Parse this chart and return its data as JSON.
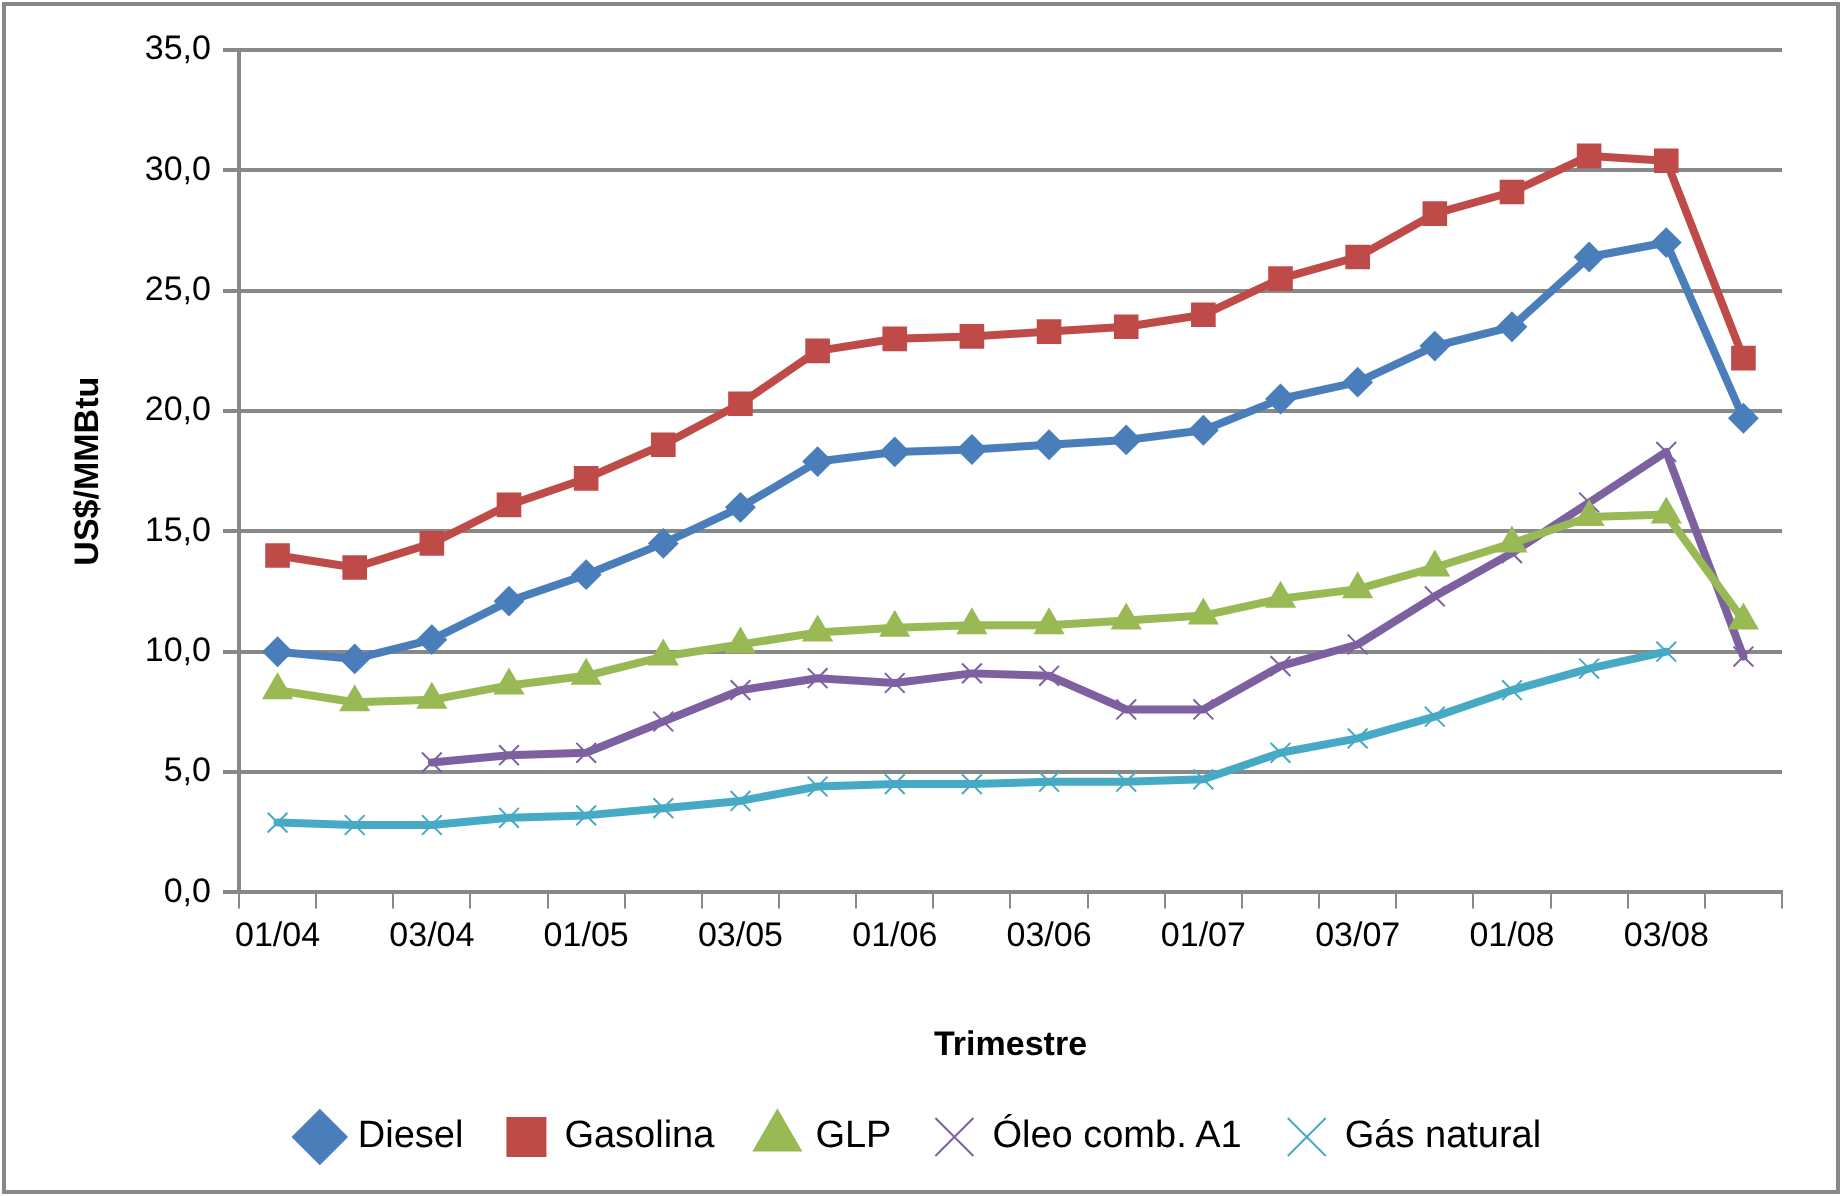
{
  "chart_data": {
    "type": "line",
    "xlabel": "Trimestre",
    "ylabel": "US$/MMBtu",
    "categories": [
      "01/04",
      null,
      "03/04",
      null,
      "01/05",
      null,
      "03/05",
      null,
      "01/06",
      null,
      "03/06",
      null,
      "01/07",
      null,
      "03/07",
      null,
      "01/08",
      null,
      "03/08",
      null
    ],
    "series": [
      {
        "name": "Diesel",
        "color": "#4a7ebb",
        "marker": "diamond",
        "values": [
          10,
          9.7,
          10.5,
          12.1,
          13.2,
          14.5,
          16,
          17.9,
          18.3,
          18.4,
          18.6,
          18.8,
          19.2,
          20.5,
          21.2,
          22.7,
          23.5,
          26.4,
          27,
          19.7
        ]
      },
      {
        "name": "Gasolina",
        "color": "#be4b48",
        "marker": "square",
        "values": [
          14,
          13.5,
          14.5,
          16.1,
          17.2,
          18.6,
          20.3,
          22.5,
          23,
          23.1,
          23.3,
          23.5,
          24,
          25.5,
          26.4,
          28.2,
          29.1,
          30.6,
          30.4,
          22.2
        ]
      },
      {
        "name": "GLP",
        "color": "#98b954",
        "marker": "triangle",
        "values": [
          8.4,
          7.9,
          8,
          8.6,
          9,
          9.8,
          10.3,
          10.8,
          11,
          11.1,
          11.1,
          11.3,
          11.5,
          12.2,
          12.6,
          13.5,
          14.5,
          15.6,
          15.7,
          11.3
        ]
      },
      {
        "name": "Óleo comb. A1",
        "color": "#7d60a0",
        "marker": "cross",
        "values": [
          null,
          null,
          5.4,
          5.7,
          5.8,
          7.1,
          8.4,
          8.9,
          8.7,
          9.1,
          9,
          7.6,
          7.6,
          9.4,
          10.3,
          12.3,
          14.1,
          16.2,
          18.3,
          9.8
        ]
      },
      {
        "name": "Gás natural",
        "color": "#46aac5",
        "marker": "cross",
        "values": [
          2.9,
          2.8,
          2.8,
          3.1,
          3.2,
          3.5,
          3.8,
          4.4,
          4.5,
          4.5,
          4.6,
          4.6,
          4.7,
          5.8,
          6.4,
          7.3,
          8.4,
          9.3,
          10,
          null
        ]
      }
    ],
    "ylim": [
      0,
      35
    ],
    "yticks": [
      {
        "value": 0,
        "label": "0,0"
      },
      {
        "value": 5,
        "label": "5,0"
      },
      {
        "value": 10,
        "label": "10,0"
      },
      {
        "value": 15,
        "label": "15,0"
      },
      {
        "value": 20,
        "label": "20,0"
      },
      {
        "value": 25,
        "label": "25,0"
      },
      {
        "value": 30,
        "label": "30,0"
      },
      {
        "value": 35,
        "label": "35,0"
      }
    ],
    "grid": "y",
    "legend": "bottom",
    "line_style": "solid"
  }
}
